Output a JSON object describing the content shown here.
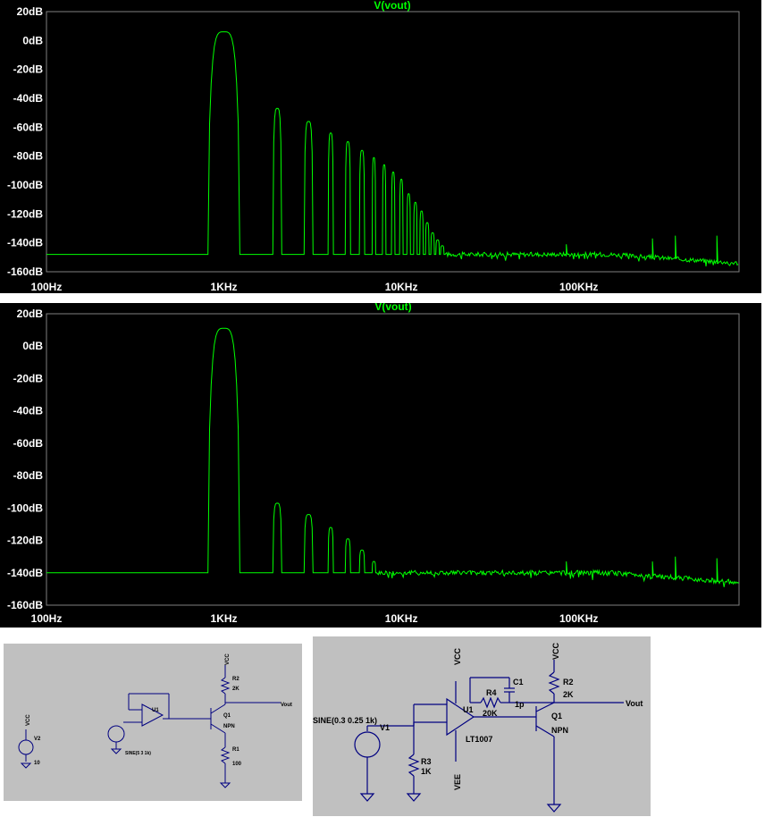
{
  "plots": [
    {
      "id": "plot1",
      "chart_data": {
        "type": "line",
        "title": "V(vout)",
        "xscale": "log",
        "xlim": [
          100,
          800000
        ],
        "ylim": [
          -160,
          20
        ],
        "yticks": [
          "20dB",
          "0dB",
          "-20dB",
          "-40dB",
          "-60dB",
          "-80dB",
          "-100dB",
          "-120dB",
          "-140dB",
          "-160dB"
        ],
        "xticks": [
          "100Hz",
          "1KHz",
          "10KHz",
          "100KHz"
        ],
        "noise_floor_db": -148,
        "fundamental": {
          "freq_hz": 1000,
          "db": 6
        },
        "harmonics": [
          {
            "n": 2,
            "db": -47
          },
          {
            "n": 3,
            "db": -56
          },
          {
            "n": 4,
            "db": -64
          },
          {
            "n": 5,
            "db": -70
          },
          {
            "n": 6,
            "db": -76
          },
          {
            "n": 7,
            "db": -81
          },
          {
            "n": 8,
            "db": -86
          },
          {
            "n": 9,
            "db": -91
          },
          {
            "n": 10,
            "db": -96
          },
          {
            "n": 11,
            "db": -106
          },
          {
            "n": 12,
            "db": -112
          },
          {
            "n": 13,
            "db": -118
          },
          {
            "n": 14,
            "db": -126
          },
          {
            "n": 15,
            "db": -133
          },
          {
            "n": 16,
            "db": -138
          },
          {
            "n": 17,
            "db": -142
          }
        ],
        "spurs": [
          {
            "freq_hz": 85000,
            "db": -141
          },
          {
            "freq_hz": 260000,
            "db": -137
          },
          {
            "freq_hz": 350000,
            "db": -135
          },
          {
            "freq_hz": 600000,
            "db": -135
          }
        ],
        "line_color": "#00ff00"
      }
    },
    {
      "id": "plot2",
      "chart_data": {
        "type": "line",
        "title": "V(vout)",
        "xscale": "log",
        "xlim": [
          100,
          800000
        ],
        "ylim": [
          -160,
          20
        ],
        "yticks": [
          "20dB",
          "0dB",
          "-20dB",
          "-40dB",
          "-60dB",
          "-80dB",
          "-100dB",
          "-120dB",
          "-140dB",
          "-160dB"
        ],
        "xticks": [
          "100Hz",
          "1KHz",
          "10KHz",
          "100KHz"
        ],
        "noise_floor_db": -140,
        "fundamental": {
          "freq_hz": 1000,
          "db": 11
        },
        "harmonics": [
          {
            "n": 2,
            "db": -97
          },
          {
            "n": 3,
            "db": -104
          },
          {
            "n": 4,
            "db": -112
          },
          {
            "n": 5,
            "db": -119
          },
          {
            "n": 6,
            "db": -126
          },
          {
            "n": 7,
            "db": -133
          }
        ],
        "spurs": [
          {
            "freq_hz": 85000,
            "db": -133
          },
          {
            "freq_hz": 260000,
            "db": -133
          },
          {
            "freq_hz": 350000,
            "db": -130
          },
          {
            "freq_hz": 600000,
            "db": -131
          }
        ],
        "line_color": "#00ff00"
      }
    }
  ],
  "schematic1": {
    "vcc_v2": "VCC",
    "v2": "V2",
    "v2_value": "10",
    "u1": "U1",
    "source": "SINE(5 3 1k)",
    "vcc_q1": "VCC",
    "r2": "R2",
    "r2_value": "2K",
    "vout": "Vout",
    "q1": "Q1",
    "q1_type": "NPN",
    "r1": "R1",
    "r1_value": "100"
  },
  "schematic2": {
    "vcc_opamp": "VCC",
    "vcc_q1": "VCC",
    "c1": "C1",
    "c1_value": "1p",
    "r4": "R4",
    "r4_value": "20K",
    "r2": "R2",
    "r2_value": "2K",
    "vout": "Vout",
    "source": "SINE(0.3 0.25 1k)",
    "v1": "V1",
    "u1": "U1",
    "u1_model": "LT1007",
    "q1": "Q1",
    "q1_type": "NPN",
    "r3": "R3",
    "r3_value": "1K",
    "vee": "VEE"
  }
}
